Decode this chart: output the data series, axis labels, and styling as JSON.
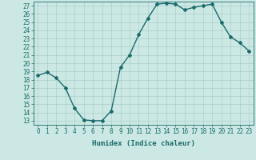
{
  "x": [
    0,
    1,
    2,
    3,
    4,
    5,
    6,
    7,
    8,
    9,
    10,
    11,
    12,
    13,
    14,
    15,
    16,
    17,
    18,
    19,
    20,
    21,
    22,
    23
  ],
  "y": [
    18.5,
    18.9,
    18.2,
    17.0,
    14.5,
    13.1,
    13.0,
    13.0,
    14.2,
    19.5,
    21.0,
    23.5,
    25.5,
    27.2,
    27.3,
    27.2,
    26.5,
    26.8,
    27.0,
    27.2,
    25.0,
    23.2,
    22.5,
    21.5
  ],
  "line_color": "#1a6b6b",
  "marker": "D",
  "marker_size": 2.0,
  "bg_color": "#cce8e4",
  "grid_color": "#aacfca",
  "xlabel": "Humidex (Indice chaleur)",
  "xlim": [
    -0.5,
    23.5
  ],
  "ylim": [
    12.5,
    27.5
  ],
  "yticks": [
    13,
    14,
    15,
    16,
    17,
    18,
    19,
    20,
    21,
    22,
    23,
    24,
    25,
    26,
    27
  ],
  "xticks": [
    0,
    1,
    2,
    3,
    4,
    5,
    6,
    7,
    8,
    9,
    10,
    11,
    12,
    13,
    14,
    15,
    16,
    17,
    18,
    19,
    20,
    21,
    22,
    23
  ],
  "tick_color": "#1a6b6b",
  "axis_color": "#1a6b6b",
  "label_fontsize": 6.5,
  "tick_fontsize": 5.5,
  "linewidth": 1.0
}
